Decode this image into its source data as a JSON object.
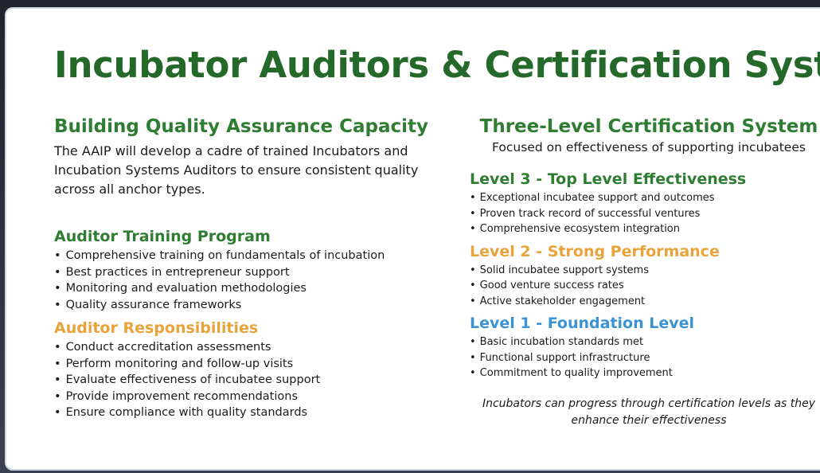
{
  "title": "Incubator Auditors & Certification System",
  "left": {
    "heading": "Building Quality Assurance Capacity",
    "intro": "The AAIP will develop a cadre of trained Incubators and Incubation Systems Auditors to ensure consistent quality across all anchor types.",
    "training": {
      "heading": "Auditor Training Program",
      "items": [
        "Comprehensive training on fundamentals of incubation",
        "Best practices in entrepreneur support",
        "Monitoring and evaluation methodologies",
        "Quality assurance frameworks"
      ]
    },
    "responsibilities": {
      "heading": "Auditor Responsibilities",
      "items": [
        "Conduct accreditation assessments",
        "Perform monitoring and follow-up visits",
        "Evaluate effectiveness of incubatee support",
        "Provide improvement recommendations",
        "Ensure compliance with quality standards"
      ]
    }
  },
  "right": {
    "heading": "Three-Level Certification System",
    "subheading": "Focused on effectiveness of supporting incubatees",
    "level3": {
      "heading": "Level 3 - Top Level Effectiveness",
      "items": [
        "Exceptional incubatee support and outcomes",
        "Proven track record of successful ventures",
        "Comprehensive ecosystem integration"
      ]
    },
    "level2": {
      "heading": "Level 2 - Strong Performance",
      "items": [
        "Solid incubatee support systems",
        "Good venture success rates",
        "Active stakeholder engagement"
      ]
    },
    "level1": {
      "heading": "Level 1 - Foundation Level",
      "items": [
        "Basic incubation standards met",
        "Functional support infrastructure",
        "Commitment to quality improvement"
      ]
    },
    "note": "Incubators can progress through certification levels as they enhance their effectiveness"
  },
  "colors": {
    "title_green": "#25692a",
    "heading_green": "#2e7d32",
    "level2_orange": "#e8a33a",
    "level1_blue": "#3b93d4"
  }
}
